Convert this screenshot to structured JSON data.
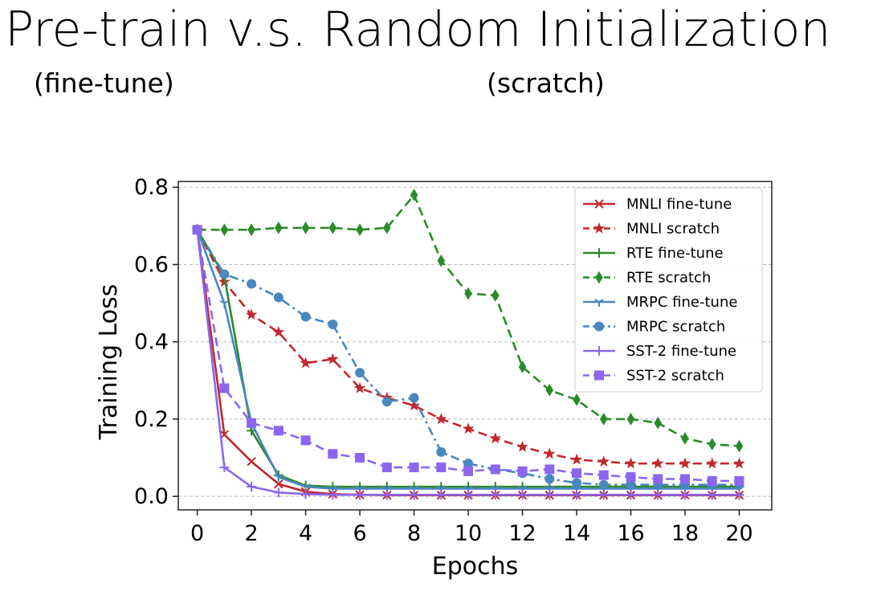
{
  "title": "Pre-train v.s. Random Initialization",
  "subtitle_left": "(fine-tune)",
  "subtitle_right": "(scratch)",
  "chart_data": {
    "type": "line",
    "xlabel": "Epochs",
    "ylabel": "Training Loss",
    "xlim": [
      -0.7,
      21.2
    ],
    "ylim": [
      -0.035,
      0.815
    ],
    "xticks": [
      0,
      2,
      4,
      6,
      8,
      10,
      12,
      14,
      16,
      18,
      20
    ],
    "yticks": [
      0.0,
      0.2,
      0.4,
      0.6,
      0.8
    ],
    "ytick_labels": [
      "0.0",
      "0.2",
      "0.4",
      "0.6",
      "0.8"
    ],
    "grid": "horizontal dashed",
    "legend_position": "upper right",
    "x": [
      0,
      1,
      2,
      3,
      4,
      5,
      6,
      7,
      8,
      9,
      10,
      11,
      12,
      13,
      14,
      15,
      16,
      17,
      18,
      19,
      20
    ],
    "series": [
      {
        "name": "MNLI fine-tune",
        "color": "#c0282e",
        "dash": "solid",
        "marker": "x",
        "values": [
          0.69,
          0.16,
          0.09,
          0.032,
          0.012,
          0.006,
          0.004,
          0.003,
          0.003,
          0.003,
          0.003,
          0.003,
          0.003,
          0.003,
          0.003,
          0.003,
          0.003,
          0.003,
          0.003,
          0.003,
          0.003
        ]
      },
      {
        "name": "MNLI scratch",
        "color": "#c0282e",
        "dash": "dashed",
        "marker": "star",
        "values": [
          0.69,
          0.555,
          0.47,
          0.425,
          0.345,
          0.355,
          0.28,
          0.255,
          0.235,
          0.2,
          0.175,
          0.15,
          0.128,
          0.11,
          0.095,
          0.09,
          0.085,
          0.085,
          0.085,
          0.085,
          0.085
        ]
      },
      {
        "name": "RTE fine-tune",
        "color": "#2a8a2a",
        "dash": "solid",
        "marker": "plus",
        "values": [
          0.69,
          0.57,
          0.17,
          0.055,
          0.028,
          0.025,
          0.025,
          0.025,
          0.025,
          0.025,
          0.025,
          0.025,
          0.025,
          0.025,
          0.025,
          0.025,
          0.025,
          0.025,
          0.025,
          0.025,
          0.025
        ]
      },
      {
        "name": "RTE scratch",
        "color": "#2a8a2a",
        "dash": "dashed",
        "marker": "diamond",
        "values": [
          0.69,
          0.69,
          0.69,
          0.695,
          0.695,
          0.695,
          0.69,
          0.695,
          0.78,
          0.61,
          0.525,
          0.52,
          0.335,
          0.275,
          0.25,
          0.2,
          0.2,
          0.19,
          0.15,
          0.135,
          0.13
        ]
      },
      {
        "name": "MRPC fine-tune",
        "color": "#4a86c0",
        "dash": "solid",
        "marker": "tri",
        "values": [
          0.69,
          0.5,
          0.19,
          0.05,
          0.025,
          0.02,
          0.02,
          0.02,
          0.02,
          0.02,
          0.02,
          0.02,
          0.02,
          0.02,
          0.02,
          0.02,
          0.02,
          0.02,
          0.02,
          0.02,
          0.02
        ]
      },
      {
        "name": "MRPC scratch",
        "color": "#4a86c0",
        "dash": "dashdot",
        "marker": "circle",
        "values": [
          0.69,
          0.575,
          0.55,
          0.515,
          0.465,
          0.445,
          0.32,
          0.245,
          0.255,
          0.115,
          0.085,
          0.07,
          0.06,
          0.045,
          0.035,
          0.03,
          0.03,
          0.03,
          0.03,
          0.03,
          0.03
        ]
      },
      {
        "name": "SST-2 fine-tune",
        "color": "#8b66ee",
        "dash": "solid",
        "marker": "plus",
        "values": [
          0.69,
          0.075,
          0.025,
          0.01,
          0.006,
          0.004,
          0.004,
          0.004,
          0.004,
          0.004,
          0.004,
          0.004,
          0.004,
          0.004,
          0.004,
          0.004,
          0.004,
          0.004,
          0.004,
          0.004,
          0.004
        ]
      },
      {
        "name": "SST-2 scratch",
        "color": "#8b66ee",
        "dash": "dashed",
        "marker": "square",
        "values": [
          0.69,
          0.28,
          0.19,
          0.17,
          0.145,
          0.11,
          0.1,
          0.075,
          0.075,
          0.075,
          0.065,
          0.07,
          0.065,
          0.07,
          0.06,
          0.055,
          0.05,
          0.045,
          0.045,
          0.04,
          0.04
        ]
      }
    ]
  }
}
